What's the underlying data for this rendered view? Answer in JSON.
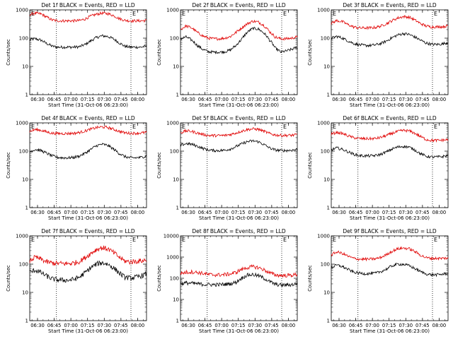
{
  "panels_common": {
    "xlabel": "Start Time (31-Oct-06 06:23:00)",
    "ylabel": "Counts/sec",
    "x_tick_labels": [
      "06:30",
      "06:45",
      "07:00",
      "07:15",
      "07:30",
      "07:45",
      "08:00"
    ],
    "marker_left": "E",
    "marker_right": "E",
    "series_colors": {
      "events": "#000000",
      "lld": "#e00000"
    }
  },
  "chart_data": [
    {
      "type": "line",
      "title": "Det 1f BLACK = Events, RED = LLD",
      "x_range_minutes": [
        0,
        105
      ],
      "y_scale": "log",
      "y_tick_labels": [
        "1",
        "10",
        "100",
        "1000"
      ],
      "ylim": [
        1,
        1000
      ],
      "dotted_vlines_minutes": [
        24,
        91
      ],
      "x_minutes": [
        0,
        5,
        10,
        15,
        20,
        25,
        30,
        35,
        40,
        45,
        50,
        55,
        60,
        65,
        70,
        75,
        80,
        85,
        90,
        95,
        100,
        105
      ],
      "series": [
        {
          "name": "Events",
          "values": [
            88,
            95,
            85,
            65,
            52,
            48,
            48,
            48,
            48,
            50,
            60,
            80,
            105,
            120,
            115,
            95,
            70,
            52,
            48,
            48,
            48,
            52
          ]
        },
        {
          "name": "LLD",
          "values": [
            700,
            760,
            720,
            560,
            440,
            410,
            410,
            410,
            410,
            420,
            480,
            600,
            700,
            760,
            740,
            640,
            500,
            430,
            410,
            410,
            410,
            420
          ]
        }
      ]
    },
    {
      "type": "line",
      "title": "Det 2f BLACK = Events, RED = LLD",
      "x_range_minutes": [
        0,
        105
      ],
      "y_scale": "log",
      "y_tick_labels": [
        "1",
        "10",
        "100",
        "1000"
      ],
      "ylim": [
        1,
        1000
      ],
      "dotted_vlines_minutes": [
        24,
        91
      ],
      "x_minutes": [
        0,
        5,
        10,
        15,
        20,
        25,
        30,
        35,
        40,
        45,
        50,
        55,
        60,
        65,
        70,
        75,
        80,
        85,
        90,
        95,
        100,
        105
      ],
      "series": [
        {
          "name": "Events",
          "values": [
            95,
            110,
            85,
            55,
            40,
            33,
            32,
            32,
            33,
            38,
            55,
            90,
            160,
            220,
            210,
            150,
            85,
            45,
            32,
            35,
            40,
            48
          ]
        },
        {
          "name": "LLD",
          "values": [
            200,
            270,
            230,
            160,
            120,
            100,
            95,
            95,
            100,
            115,
            160,
            230,
            320,
            400,
            370,
            280,
            170,
            110,
            95,
            95,
            100,
            110
          ]
        }
      ]
    },
    {
      "type": "line",
      "title": "Det 3f BLACK = Events, RED = LLD",
      "x_range_minutes": [
        0,
        105
      ],
      "y_scale": "log",
      "y_tick_labels": [
        "1",
        "10",
        "100",
        "1000"
      ],
      "ylim": [
        1,
        1000
      ],
      "dotted_vlines_minutes": [
        24,
        91
      ],
      "x_minutes": [
        0,
        5,
        10,
        15,
        20,
        25,
        30,
        35,
        40,
        45,
        50,
        55,
        60,
        65,
        70,
        75,
        80,
        85,
        90,
        95,
        100,
        105
      ],
      "series": [
        {
          "name": "Events",
          "values": [
            100,
            115,
            100,
            80,
            65,
            58,
            55,
            55,
            58,
            65,
            80,
            105,
            130,
            145,
            135,
            110,
            85,
            68,
            60,
            60,
            62,
            70
          ]
        },
        {
          "name": "LLD",
          "values": [
            330,
            420,
            380,
            300,
            250,
            230,
            230,
            230,
            240,
            270,
            330,
            420,
            520,
            580,
            550,
            440,
            330,
            270,
            250,
            250,
            255,
            270
          ]
        }
      ]
    },
    {
      "type": "line",
      "title": "Det 4f BLACK = Events, RED = LLD",
      "x_range_minutes": [
        0,
        105
      ],
      "y_scale": "log",
      "y_tick_labels": [
        "1",
        "10",
        "100",
        "1000"
      ],
      "ylim": [
        1,
        1000
      ],
      "dotted_vlines_minutes": [
        24,
        91
      ],
      "x_minutes": [
        0,
        5,
        10,
        15,
        20,
        25,
        30,
        35,
        40,
        45,
        50,
        55,
        60,
        65,
        70,
        75,
        80,
        85,
        90,
        95,
        100,
        105
      ],
      "series": [
        {
          "name": "Events",
          "values": [
            95,
            115,
            105,
            85,
            68,
            60,
            58,
            58,
            60,
            68,
            85,
            115,
            155,
            175,
            160,
            120,
            85,
            65,
            58,
            58,
            60,
            68
          ]
        },
        {
          "name": "LLD",
          "values": [
            500,
            580,
            550,
            480,
            430,
            420,
            420,
            420,
            430,
            460,
            520,
            600,
            680,
            720,
            690,
            600,
            510,
            450,
            430,
            430,
            440,
            460
          ]
        }
      ]
    },
    {
      "type": "line",
      "title": "Det 5f BLACK = Events, RED = LLD",
      "x_range_minutes": [
        0,
        105
      ],
      "y_scale": "log",
      "y_tick_labels": [
        "1",
        "10",
        "100",
        "1000"
      ],
      "ylim": [
        1,
        1000
      ],
      "dotted_vlines_minutes": [
        24,
        91
      ],
      "x_minutes": [
        0,
        5,
        10,
        15,
        20,
        25,
        30,
        35,
        40,
        45,
        50,
        55,
        60,
        65,
        70,
        75,
        80,
        85,
        90,
        95,
        100,
        105
      ],
      "series": [
        {
          "name": "Events",
          "values": [
            160,
            185,
            175,
            150,
            125,
            110,
            105,
            105,
            108,
            120,
            145,
            180,
            215,
            230,
            215,
            170,
            130,
            110,
            105,
            105,
            108,
            115
          ]
        },
        {
          "name": "LLD",
          "values": [
            450,
            520,
            500,
            440,
            390,
            360,
            355,
            355,
            360,
            390,
            440,
            510,
            580,
            610,
            590,
            500,
            420,
            375,
            360,
            360,
            365,
            380
          ]
        }
      ]
    },
    {
      "type": "line",
      "title": "Det 6f BLACK = Events, RED = LLD",
      "x_range_minutes": [
        0,
        105
      ],
      "y_scale": "log",
      "y_tick_labels": [
        "1",
        "10",
        "100",
        "1000"
      ],
      "ylim": [
        1,
        1000
      ],
      "dotted_vlines_minutes": [
        24,
        91
      ],
      "x_minutes": [
        0,
        5,
        10,
        15,
        20,
        25,
        30,
        35,
        40,
        45,
        50,
        55,
        60,
        65,
        70,
        75,
        80,
        85,
        90,
        95,
        100,
        105
      ],
      "series": [
        {
          "name": "Events",
          "values": [
            110,
            130,
            115,
            95,
            78,
            70,
            68,
            68,
            70,
            78,
            95,
            120,
            140,
            148,
            138,
            110,
            82,
            66,
            62,
            62,
            64,
            70
          ]
        },
        {
          "name": "LLD",
          "values": [
            400,
            460,
            420,
            350,
            300,
            280,
            275,
            275,
            280,
            310,
            360,
            430,
            500,
            540,
            520,
            430,
            330,
            260,
            240,
            240,
            245,
            255
          ]
        }
      ]
    },
    {
      "type": "line",
      "title": "Det 7f BLACK = Events, RED = LLD",
      "x_range_minutes": [
        0,
        105
      ],
      "y_scale": "log",
      "y_tick_labels": [
        "1",
        "10",
        "100",
        "1000"
      ],
      "ylim": [
        1,
        1000
      ],
      "dotted_vlines_minutes": [
        24,
        91
      ],
      "x_minutes": [
        0,
        5,
        10,
        15,
        20,
        25,
        30,
        35,
        40,
        45,
        50,
        55,
        60,
        65,
        70,
        75,
        80,
        85,
        90,
        95,
        100,
        105
      ],
      "series": [
        {
          "name": "Events",
          "values": [
            50,
            62,
            50,
            38,
            30,
            28,
            27,
            27,
            29,
            35,
            50,
            75,
            100,
            112,
            100,
            75,
            50,
            35,
            32,
            34,
            38,
            45
          ]
        },
        {
          "name": "LLD",
          "values": [
            130,
            175,
            150,
            120,
            110,
            105,
            105,
            105,
            110,
            125,
            170,
            240,
            330,
            380,
            350,
            260,
            180,
            130,
            120,
            125,
            130,
            140
          ]
        }
      ]
    },
    {
      "type": "line",
      "title": "Det 8f BLACK = Events, RED = LLD",
      "x_range_minutes": [
        0,
        105
      ],
      "y_scale": "log",
      "y_tick_labels": [
        "1",
        "10",
        "100",
        "1000",
        "10000"
      ],
      "ylim": [
        1,
        10000
      ],
      "dotted_vlines_minutes": [
        24,
        91
      ],
      "x_minutes": [
        0,
        5,
        10,
        15,
        20,
        25,
        30,
        35,
        40,
        45,
        50,
        55,
        60,
        65,
        70,
        75,
        80,
        85,
        90,
        95,
        100,
        105
      ],
      "series": [
        {
          "name": "Events",
          "values": [
            55,
            60,
            58,
            55,
            52,
            50,
            50,
            50,
            52,
            55,
            65,
            100,
            140,
            150,
            130,
            100,
            70,
            52,
            48,
            48,
            50,
            55
          ]
        },
        {
          "name": "LLD",
          "values": [
            170,
            190,
            200,
            190,
            170,
            150,
            145,
            145,
            150,
            160,
            190,
            260,
            320,
            350,
            320,
            250,
            180,
            145,
            135,
            135,
            140,
            150
          ]
        }
      ]
    },
    {
      "type": "line",
      "title": "Det 9f BLACK = Events, RED = LLD",
      "x_range_minutes": [
        0,
        105
      ],
      "y_scale": "log",
      "y_tick_labels": [
        "1",
        "10",
        "100",
        "1000"
      ],
      "ylim": [
        1,
        1000
      ],
      "dotted_vlines_minutes": [
        24,
        91
      ],
      "x_minutes": [
        0,
        5,
        10,
        15,
        20,
        25,
        30,
        35,
        40,
        45,
        50,
        55,
        60,
        65,
        70,
        75,
        80,
        85,
        90,
        95,
        100,
        105
      ],
      "series": [
        {
          "name": "Events",
          "values": [
            75,
            92,
            82,
            65,
            52,
            48,
            46,
            46,
            48,
            55,
            68,
            88,
            100,
            98,
            88,
            70,
            55,
            45,
            42,
            42,
            44,
            48
          ]
        },
        {
          "name": "LLD",
          "values": [
            210,
            270,
            240,
            190,
            160,
            150,
            150,
            150,
            155,
            175,
            220,
            290,
            350,
            370,
            350,
            280,
            210,
            170,
            160,
            160,
            160,
            165
          ]
        }
      ]
    }
  ]
}
